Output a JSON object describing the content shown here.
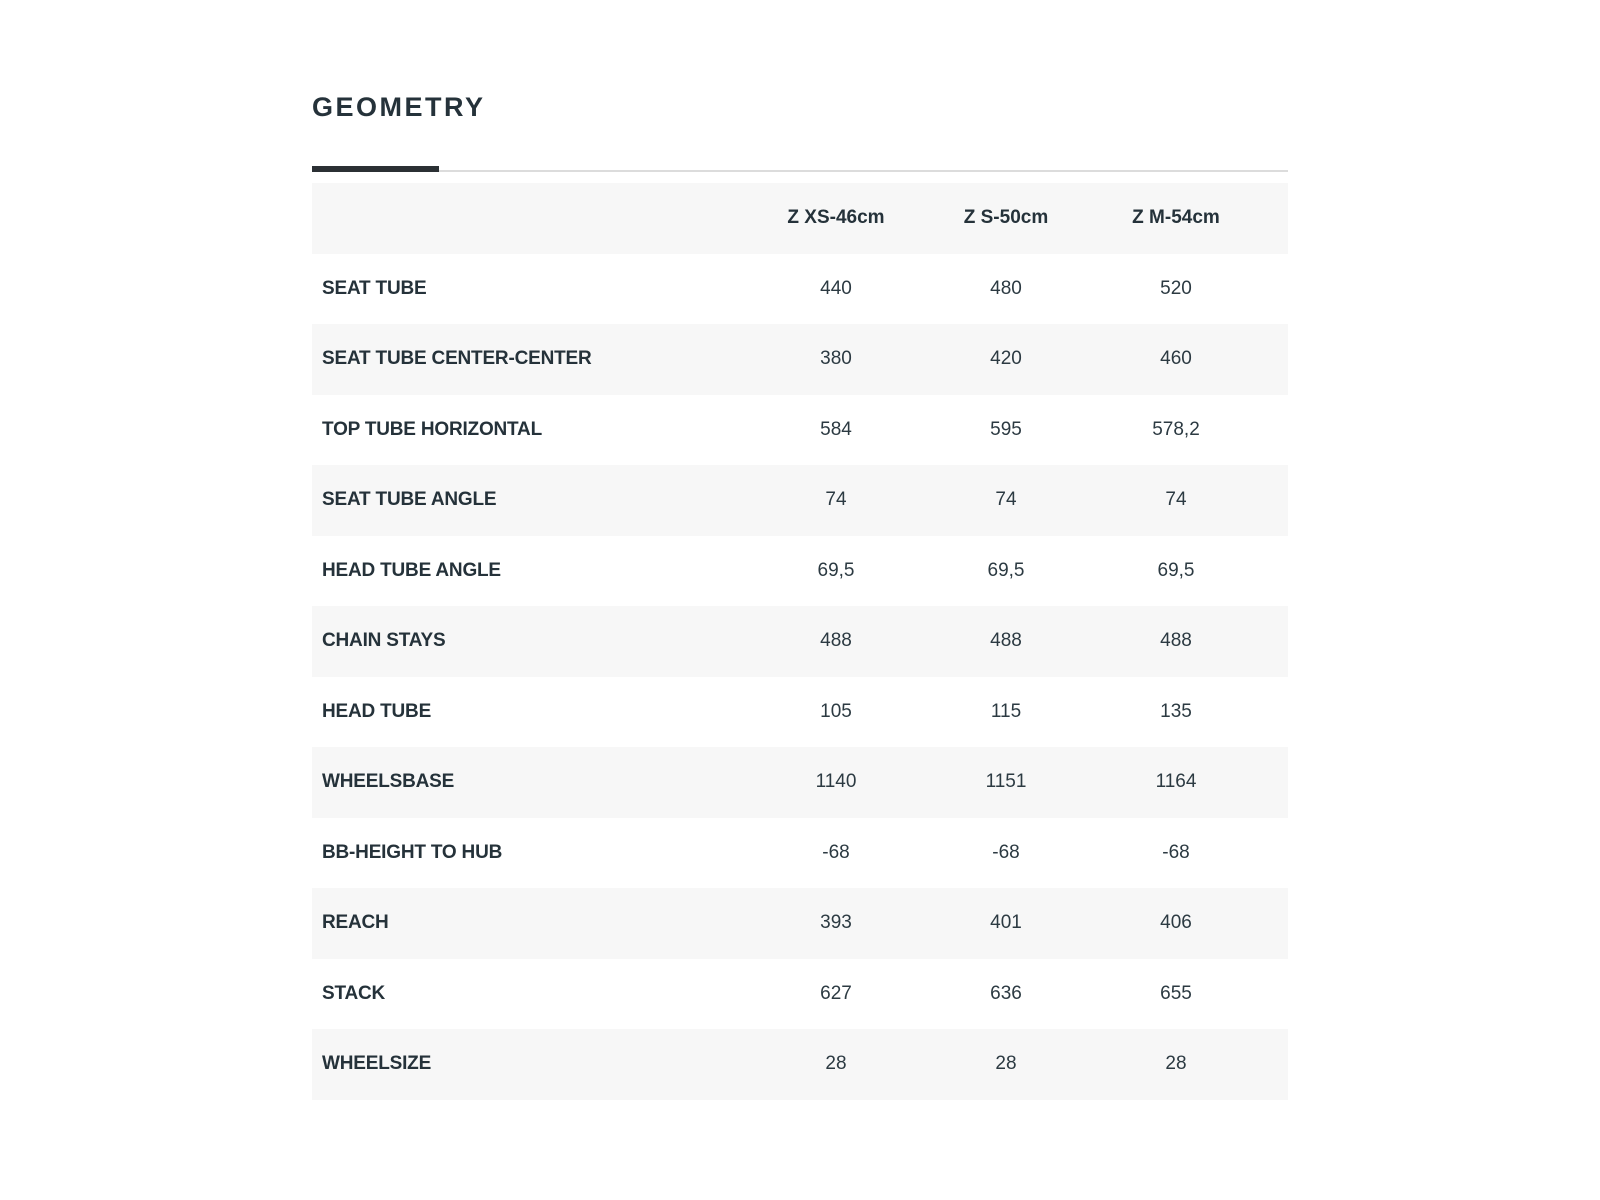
{
  "page": {
    "title": "GEOMETRY"
  },
  "colors": {
    "text": "#25323a",
    "accent_bar": "#2b3034",
    "divider_line": "#dcdcdc",
    "row_alt_background": "#f7f7f7"
  },
  "table": {
    "columns": [
      "Z XS-46cm",
      "Z S-50cm",
      "Z M-54cm"
    ],
    "rows": [
      {
        "label": "SEAT TUBE",
        "values": [
          "440",
          "480",
          "520"
        ]
      },
      {
        "label": "SEAT TUBE CENTER-CENTER",
        "values": [
          "380",
          "420",
          "460"
        ]
      },
      {
        "label": "TOP TUBE HORIZONTAL",
        "values": [
          "584",
          "595",
          "578,2"
        ]
      },
      {
        "label": "SEAT TUBE ANGLE",
        "values": [
          "74",
          "74",
          "74"
        ]
      },
      {
        "label": "HEAD TUBE ANGLE",
        "values": [
          "69,5",
          "69,5",
          "69,5"
        ]
      },
      {
        "label": "CHAIN STAYS",
        "values": [
          "488",
          "488",
          "488"
        ]
      },
      {
        "label": "HEAD TUBE",
        "values": [
          "105",
          "115",
          "135"
        ]
      },
      {
        "label": "WHEELSBASE",
        "values": [
          "1140",
          "1151",
          "1164"
        ]
      },
      {
        "label": "BB-HEIGHT TO HUB",
        "values": [
          "-68",
          "-68",
          "-68"
        ]
      },
      {
        "label": "REACH",
        "values": [
          "393",
          "401",
          "406"
        ]
      },
      {
        "label": "STACK",
        "values": [
          "627",
          "636",
          "655"
        ]
      },
      {
        "label": "WHEELSIZE",
        "values": [
          "28",
          "28",
          "28"
        ]
      }
    ]
  }
}
